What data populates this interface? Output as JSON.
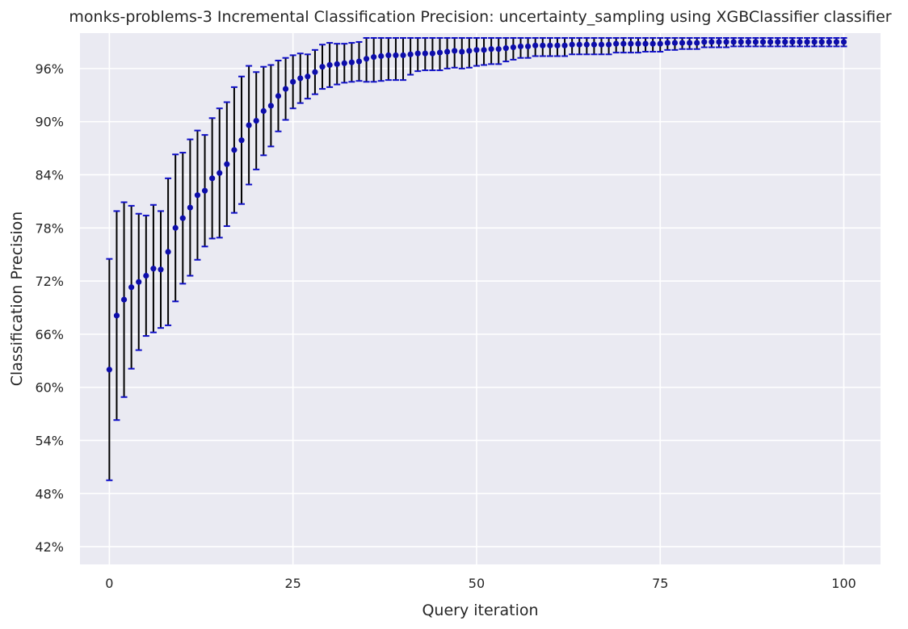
{
  "chart_data": {
    "type": "scatter",
    "title": "monks-problems-3 Incremental Classification Precision: uncertainty_sampling using XGBClassifier classifier",
    "xlabel": "Query iteration",
    "ylabel": "Classification Precision",
    "xlim": [
      -4,
      105
    ],
    "ylim": [
      0.4,
      1.0
    ],
    "grid": true,
    "x_ticks": [
      0,
      25,
      50,
      75,
      100
    ],
    "y_ticks": [
      0.42,
      0.48,
      0.54,
      0.6,
      0.66,
      0.72,
      0.78,
      0.84,
      0.9,
      0.96
    ],
    "y_tick_labels": [
      "42%",
      "48%",
      "54%",
      "60%",
      "66%",
      "72%",
      "78%",
      "84%",
      "90%",
      "96%"
    ],
    "colors": {
      "background": "#eaeaf2",
      "grid": "#ffffff",
      "marker": "#0d0dab",
      "errorbar": "#000000",
      "cap": "#1010c8"
    },
    "series": [
      {
        "x": [
          0,
          1,
          2,
          3,
          4,
          5,
          6,
          7,
          8,
          9,
          10,
          11,
          12,
          13,
          14,
          15,
          16,
          17,
          18,
          19,
          20,
          21,
          22,
          23,
          24,
          25,
          26,
          27,
          28,
          29,
          30,
          31,
          32,
          33,
          34,
          35,
          36,
          37,
          38,
          39,
          40,
          41,
          42,
          43,
          44,
          45,
          46,
          47,
          48,
          49,
          50,
          51,
          52,
          53,
          54,
          55,
          56,
          57,
          58,
          59,
          60,
          61,
          62,
          63,
          64,
          65,
          66,
          67,
          68,
          69,
          70,
          71,
          72,
          73,
          74,
          75,
          76,
          77,
          78,
          79,
          80,
          81,
          82,
          83,
          84,
          85,
          86,
          87,
          88,
          89,
          90,
          91,
          92,
          93,
          94,
          95,
          96,
          97,
          98,
          99,
          100
        ],
        "y": [
          0.62,
          0.681,
          0.699,
          0.713,
          0.719,
          0.726,
          0.734,
          0.733,
          0.753,
          0.78,
          0.791,
          0.803,
          0.817,
          0.822,
          0.836,
          0.842,
          0.852,
          0.868,
          0.879,
          0.896,
          0.901,
          0.912,
          0.918,
          0.929,
          0.937,
          0.945,
          0.949,
          0.951,
          0.956,
          0.962,
          0.964,
          0.965,
          0.966,
          0.967,
          0.968,
          0.971,
          0.973,
          0.974,
          0.975,
          0.975,
          0.975,
          0.976,
          0.977,
          0.977,
          0.977,
          0.978,
          0.979,
          0.98,
          0.979,
          0.98,
          0.981,
          0.981,
          0.982,
          0.982,
          0.983,
          0.984,
          0.985,
          0.985,
          0.986,
          0.986,
          0.986,
          0.986,
          0.986,
          0.987,
          0.987,
          0.987,
          0.987,
          0.987,
          0.987,
          0.988,
          0.988,
          0.988,
          0.988,
          0.988,
          0.988,
          0.988,
          0.989,
          0.989,
          0.989,
          0.989,
          0.989,
          0.99,
          0.99,
          0.99,
          0.99,
          0.99,
          0.99,
          0.99,
          0.99,
          0.99,
          0.99,
          0.99,
          0.99,
          0.99,
          0.99,
          0.99,
          0.99,
          0.99,
          0.99,
          0.99,
          0.99
        ],
        "err": [
          0.125,
          0.118,
          0.11,
          0.092,
          0.077,
          0.068,
          0.072,
          0.066,
          0.083,
          0.083,
          0.074,
          0.077,
          0.073,
          0.063,
          0.068,
          0.073,
          0.07,
          0.071,
          0.072,
          0.067,
          0.055,
          0.05,
          0.046,
          0.04,
          0.035,
          0.03,
          0.028,
          0.025,
          0.025,
          0.025,
          0.025,
          0.023,
          0.022,
          0.022,
          0.022,
          0.026,
          0.028,
          0.028,
          0.028,
          0.028,
          0.028,
          0.023,
          0.02,
          0.019,
          0.019,
          0.02,
          0.019,
          0.019,
          0.019,
          0.019,
          0.018,
          0.017,
          0.017,
          0.017,
          0.015,
          0.014,
          0.013,
          0.013,
          0.012,
          0.012,
          0.012,
          0.012,
          0.012,
          0.011,
          0.011,
          0.011,
          0.011,
          0.011,
          0.011,
          0.01,
          0.01,
          0.01,
          0.01,
          0.009,
          0.009,
          0.009,
          0.008,
          0.008,
          0.007,
          0.007,
          0.007,
          0.006,
          0.006,
          0.006,
          0.006,
          0.005,
          0.005,
          0.005,
          0.005,
          0.005,
          0.005,
          0.005,
          0.005,
          0.005,
          0.005,
          0.005,
          0.005,
          0.005,
          0.005,
          0.005,
          0.005
        ]
      }
    ]
  }
}
